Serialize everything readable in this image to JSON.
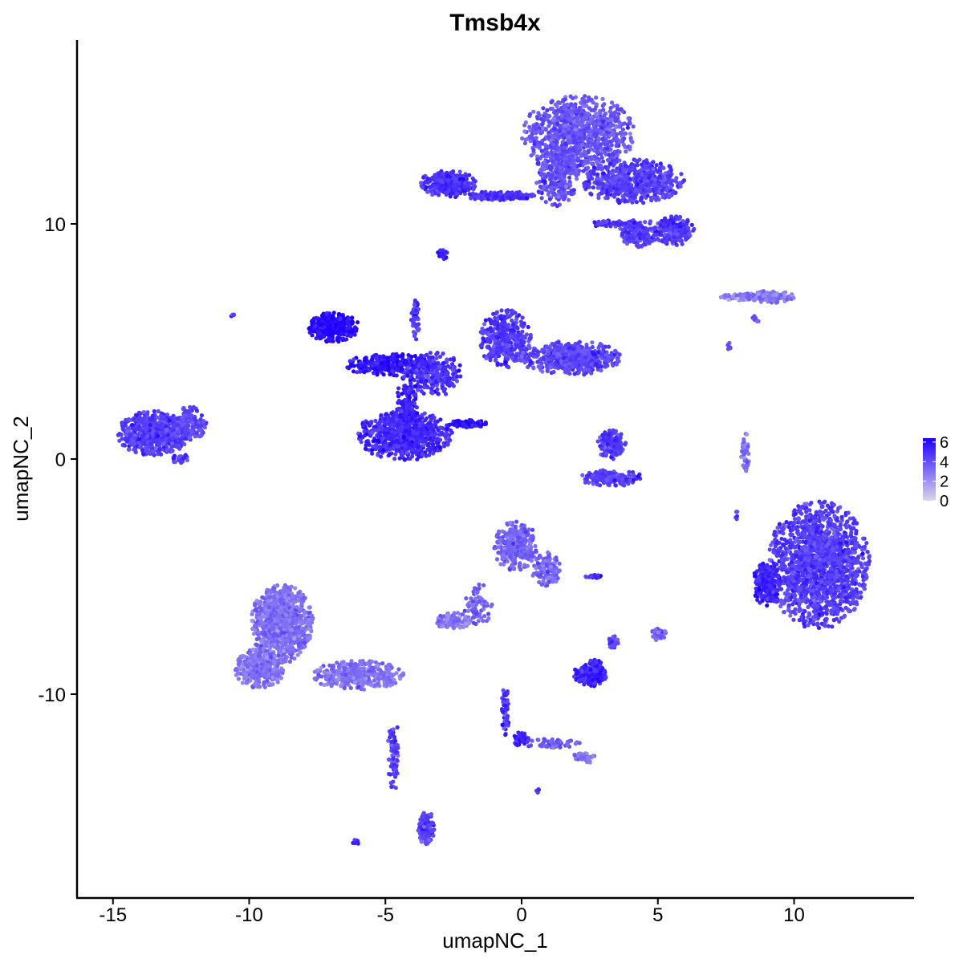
{
  "chart_data": {
    "type": "scatter",
    "title": "Tmsb4x",
    "xlabel": "umapNC_1",
    "ylabel": "umapNC_2",
    "xlim": [
      -16.3,
      14.4
    ],
    "ylim": [
      -18.3,
      17.9
    ],
    "x_ticks": [
      -15,
      -10,
      -5,
      0,
      5,
      10
    ],
    "x_tick_labels": [
      "-15",
      "-10",
      "-5",
      "0",
      "5",
      "10"
    ],
    "y_ticks": [
      -10,
      0,
      10
    ],
    "y_tick_labels": [
      "-10",
      "0",
      "10"
    ],
    "grid": false,
    "legend_position": "right",
    "color_scale": {
      "low": "#d9d6e9",
      "high": "#1f00ff",
      "min": 0,
      "max": 6.4,
      "breaks": [
        6,
        4,
        2,
        0
      ],
      "break_labels": [
        "6",
        "4",
        "2",
        "0"
      ]
    },
    "clusters": [
      {
        "cx": 2.1,
        "cy": 13.8,
        "rx": 2.0,
        "ry": 1.6,
        "n": 900,
        "expr": 3.9
      },
      {
        "cx": 1.3,
        "cy": 12.1,
        "rx": 0.8,
        "ry": 1.3,
        "n": 280,
        "expr": 4.1
      },
      {
        "cx": 4.1,
        "cy": 11.8,
        "rx": 1.8,
        "ry": 0.9,
        "n": 600,
        "expr": 4.6
      },
      {
        "cx": 5.6,
        "cy": 9.7,
        "rx": 0.7,
        "ry": 0.6,
        "n": 220,
        "expr": 4.8
      },
      {
        "cx": 4.3,
        "cy": 9.6,
        "rx": 0.7,
        "ry": 0.6,
        "n": 160,
        "expr": 4.6
      },
      {
        "cx": -2.7,
        "cy": 11.7,
        "rx": 1.0,
        "ry": 0.55,
        "n": 300,
        "expr": 5.0
      },
      {
        "cx": -0.8,
        "cy": 11.2,
        "rx": 1.3,
        "ry": 0.18,
        "n": 160,
        "expr": 4.9
      },
      {
        "cx": 3.4,
        "cy": 10.0,
        "rx": 0.8,
        "ry": 0.15,
        "n": 60,
        "expr": 5.0
      },
      {
        "cx": -2.9,
        "cy": 8.7,
        "rx": 0.2,
        "ry": 0.25,
        "n": 25,
        "expr": 5.2
      },
      {
        "cx": -6.9,
        "cy": 5.6,
        "rx": 0.9,
        "ry": 0.6,
        "n": 380,
        "expr": 6.2
      },
      {
        "cx": -4.8,
        "cy": 4.0,
        "rx": 1.6,
        "ry": 0.45,
        "n": 300,
        "expr": 5.8
      },
      {
        "cx": -3.2,
        "cy": 3.6,
        "rx": 1.0,
        "ry": 0.9,
        "n": 260,
        "expr": 5.0
      },
      {
        "cx": -4.3,
        "cy": 1.0,
        "rx": 1.7,
        "ry": 1.0,
        "n": 700,
        "expr": 5.2
      },
      {
        "cx": -4.2,
        "cy": 2.2,
        "rx": 0.4,
        "ry": 1.3,
        "n": 160,
        "expr": 5.5
      },
      {
        "cx": -3.9,
        "cy": 6.0,
        "rx": 0.15,
        "ry": 0.9,
        "n": 60,
        "expr": 4.6
      },
      {
        "cx": -2.0,
        "cy": 1.5,
        "rx": 0.7,
        "ry": 0.15,
        "n": 80,
        "expr": 6.0
      },
      {
        "cx": -0.6,
        "cy": 5.1,
        "rx": 0.9,
        "ry": 1.2,
        "n": 380,
        "expr": 4.7
      },
      {
        "cx": 1.8,
        "cy": 4.3,
        "rx": 1.8,
        "ry": 0.7,
        "n": 520,
        "expr": 4.4
      },
      {
        "cx": -13.5,
        "cy": 1.1,
        "rx": 1.3,
        "ry": 0.9,
        "n": 650,
        "expr": 4.6
      },
      {
        "cx": -12.2,
        "cy": 1.5,
        "rx": 0.6,
        "ry": 0.7,
        "n": 160,
        "expr": 4.4
      },
      {
        "cx": -12.5,
        "cy": 0.0,
        "rx": 0.3,
        "ry": 0.2,
        "n": 30,
        "expr": 4.6
      },
      {
        "cx": 3.3,
        "cy": 0.6,
        "rx": 0.5,
        "ry": 0.6,
        "n": 160,
        "expr": 4.6
      },
      {
        "cx": 3.3,
        "cy": -0.8,
        "rx": 1.1,
        "ry": 0.35,
        "n": 180,
        "expr": 4.6
      },
      {
        "cx": 8.0,
        "cy": 6.9,
        "rx": 0.7,
        "ry": 0.15,
        "n": 60,
        "expr": 2.6
      },
      {
        "cx": 9.1,
        "cy": 6.9,
        "rx": 0.9,
        "ry": 0.25,
        "n": 110,
        "expr": 3.0
      },
      {
        "cx": 8.2,
        "cy": 0.2,
        "rx": 0.15,
        "ry": 0.9,
        "n": 50,
        "expr": 3.0
      },
      {
        "cx": 10.9,
        "cy": -4.5,
        "rx": 1.8,
        "ry": 2.6,
        "n": 1700,
        "expr": 4.6
      },
      {
        "cx": 9.0,
        "cy": -5.3,
        "rx": 0.5,
        "ry": 0.9,
        "n": 200,
        "expr": 5.4
      },
      {
        "cx": -0.2,
        "cy": -3.7,
        "rx": 0.8,
        "ry": 1.0,
        "n": 320,
        "expr": 3.5
      },
      {
        "cx": 0.9,
        "cy": -4.7,
        "rx": 0.5,
        "ry": 0.7,
        "n": 120,
        "expr": 3.4
      },
      {
        "cx": -1.6,
        "cy": -6.2,
        "rx": 0.5,
        "ry": 0.9,
        "n": 70,
        "expr": 3.5
      },
      {
        "cx": -2.5,
        "cy": -6.9,
        "rx": 0.6,
        "ry": 0.35,
        "n": 110,
        "expr": 2.8
      },
      {
        "cx": -8.8,
        "cy": -7.0,
        "rx": 1.1,
        "ry": 1.6,
        "n": 900,
        "expr": 3.1
      },
      {
        "cx": -9.6,
        "cy": -8.9,
        "rx": 0.9,
        "ry": 0.8,
        "n": 400,
        "expr": 3.0
      },
      {
        "cx": -6.0,
        "cy": -9.2,
        "rx": 1.6,
        "ry": 0.6,
        "n": 400,
        "expr": 3.0
      },
      {
        "cx": -4.7,
        "cy": -12.5,
        "rx": 0.2,
        "ry": 1.6,
        "n": 70,
        "expr": 4.6
      },
      {
        "cx": -3.5,
        "cy": -15.7,
        "rx": 0.3,
        "ry": 0.7,
        "n": 150,
        "expr": 4.4
      },
      {
        "cx": 2.5,
        "cy": -9.2,
        "rx": 0.6,
        "ry": 0.45,
        "n": 200,
        "expr": 5.3
      },
      {
        "cx": 2.7,
        "cy": -8.7,
        "rx": 0.2,
        "ry": 0.2,
        "n": 30,
        "expr": 5.5
      },
      {
        "cx": 3.4,
        "cy": -7.8,
        "rx": 0.2,
        "ry": 0.3,
        "n": 25,
        "expr": 4.4
      },
      {
        "cx": 2.7,
        "cy": -5.0,
        "rx": 0.35,
        "ry": 0.08,
        "n": 20,
        "expr": 5.0
      },
      {
        "cx": 5.0,
        "cy": -7.4,
        "rx": 0.3,
        "ry": 0.3,
        "n": 40,
        "expr": 3.5
      },
      {
        "cx": -0.6,
        "cy": -10.7,
        "rx": 0.15,
        "ry": 1.0,
        "n": 60,
        "expr": 4.8
      },
      {
        "cx": 0.0,
        "cy": -11.9,
        "rx": 0.3,
        "ry": 0.3,
        "n": 40,
        "expr": 5.4
      },
      {
        "cx": 1.1,
        "cy": -12.1,
        "rx": 1.0,
        "ry": 0.2,
        "n": 60,
        "expr": 3.8
      },
      {
        "cx": 2.3,
        "cy": -12.7,
        "rx": 0.4,
        "ry": 0.25,
        "n": 50,
        "expr": 2.8
      },
      {
        "cx": -6.1,
        "cy": -16.3,
        "rx": 0.15,
        "ry": 0.1,
        "n": 8,
        "expr": 5.0
      },
      {
        "cx": 0.6,
        "cy": -14.1,
        "rx": 0.08,
        "ry": 0.08,
        "n": 5,
        "expr": 5.0
      },
      {
        "cx": -10.6,
        "cy": 6.1,
        "rx": 0.08,
        "ry": 0.08,
        "n": 5,
        "expr": 4.5
      },
      {
        "cx": 8.6,
        "cy": 5.9,
        "rx": 0.15,
        "ry": 0.2,
        "n": 10,
        "expr": 3.5
      },
      {
        "cx": 7.6,
        "cy": 4.8,
        "rx": 0.1,
        "ry": 0.2,
        "n": 6,
        "expr": 4.0
      },
      {
        "cx": 7.9,
        "cy": -2.4,
        "rx": 0.05,
        "ry": 0.3,
        "n": 5,
        "expr": 4.0
      }
    ]
  }
}
